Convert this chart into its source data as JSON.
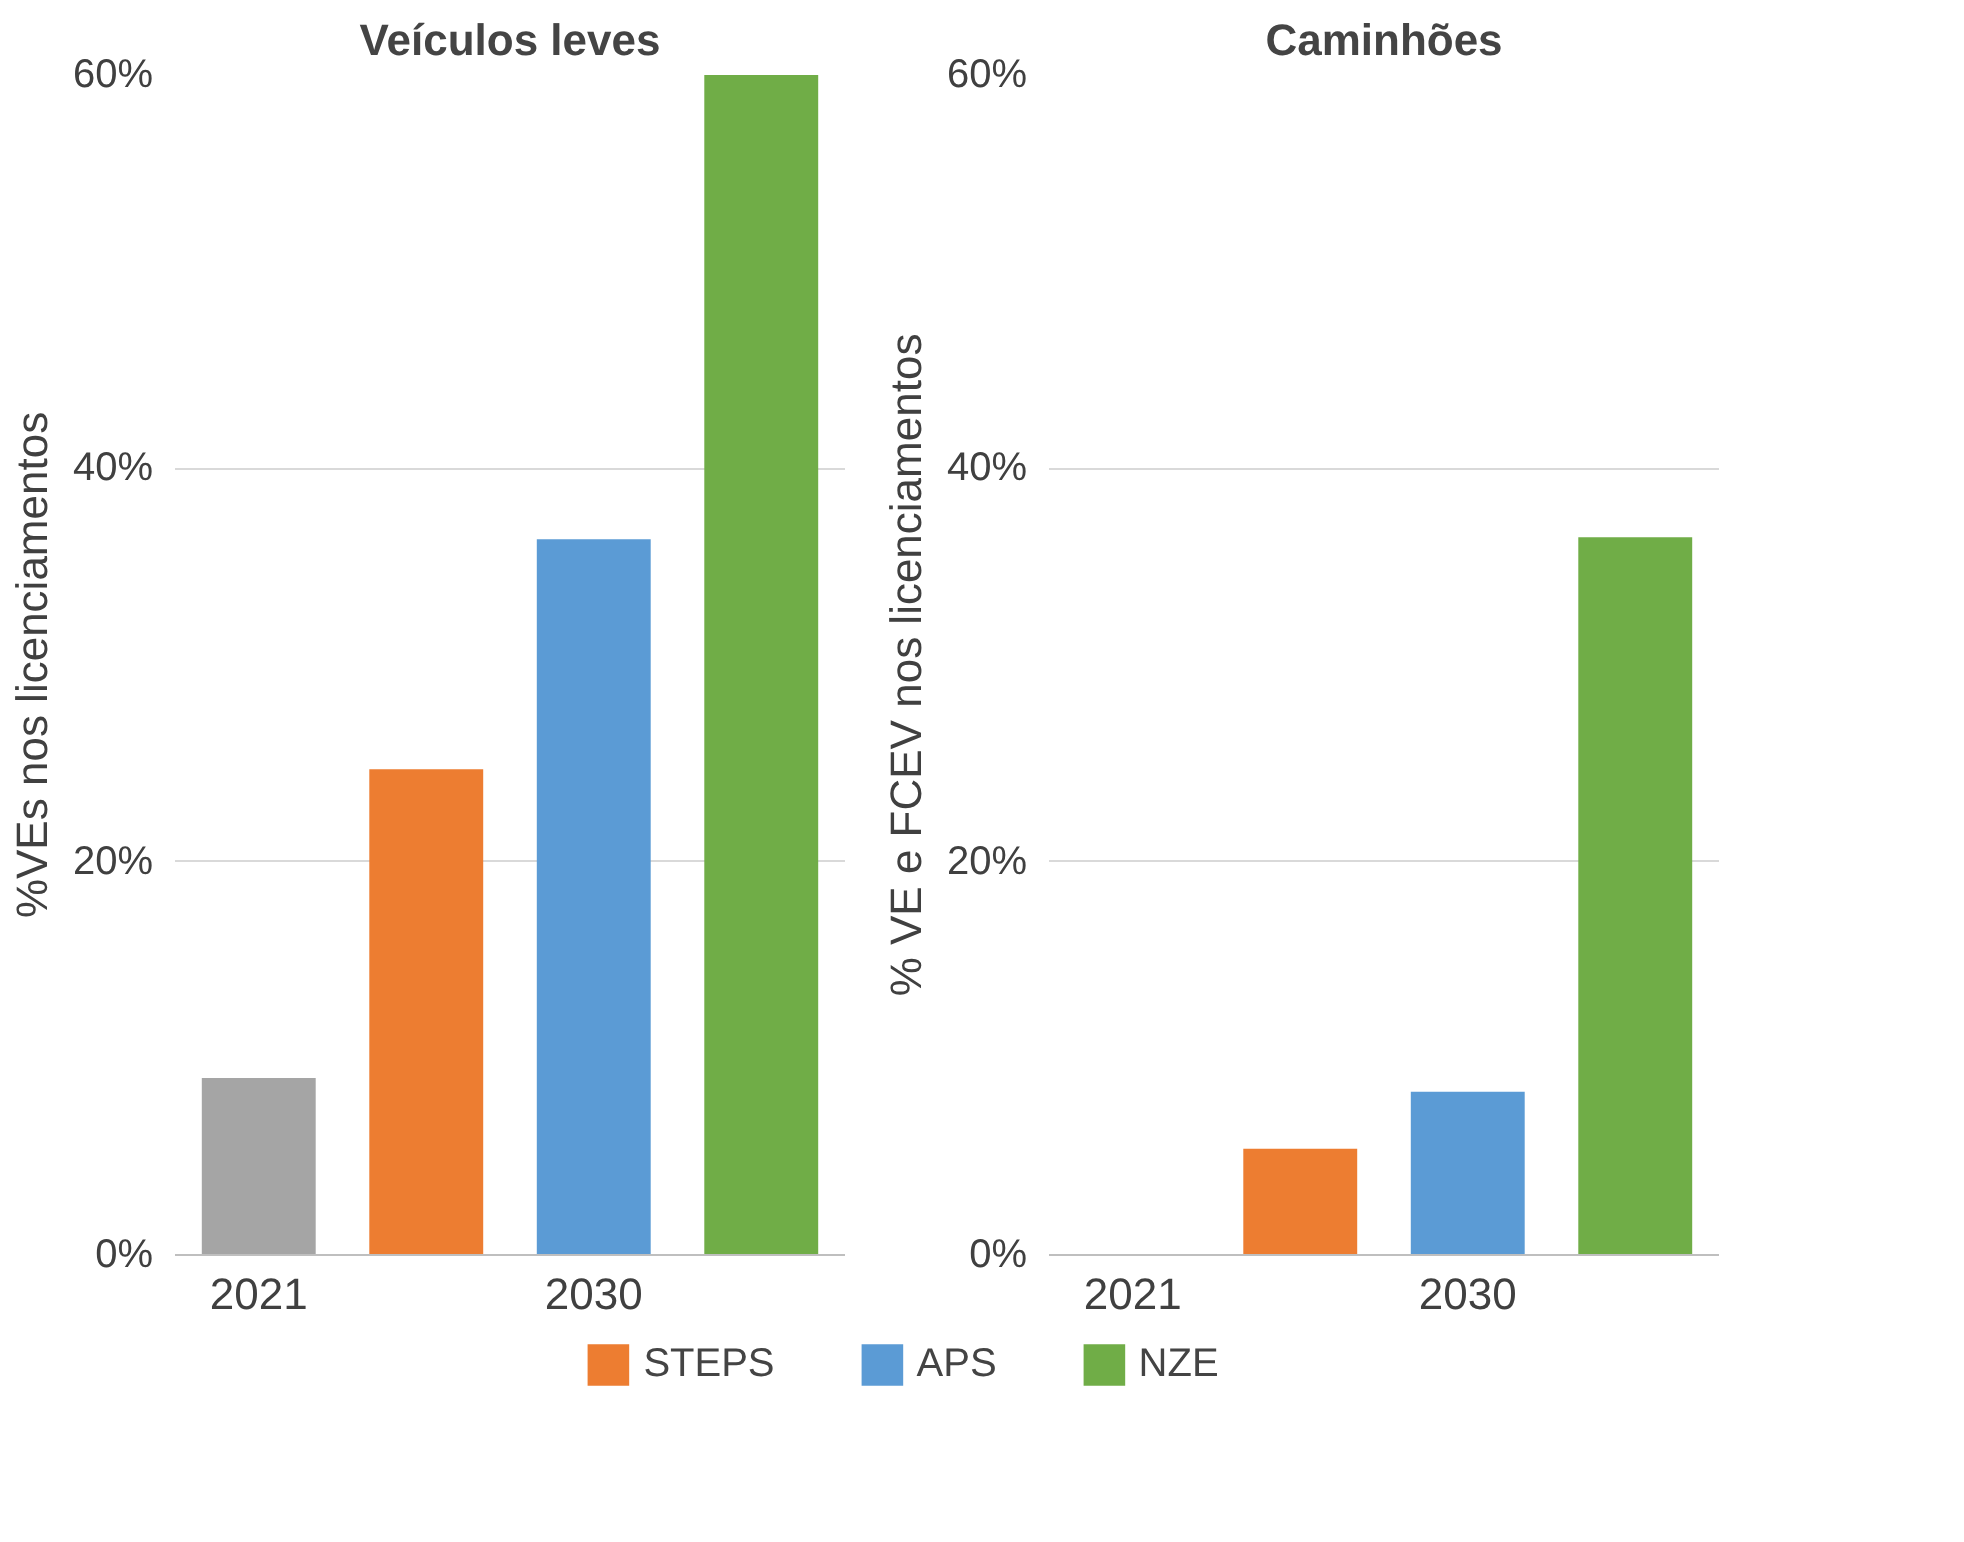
{
  "chart_data": [
    {
      "type": "bar",
      "title": "Veículos leves",
      "ylabel": "%VEs nos licenciamentos",
      "categories": [
        "2021",
        null,
        "2030",
        null
      ],
      "series": [
        {
          "color": "#a5a5a5",
          "values": [
            9.0,
            null,
            null,
            null
          ]
        },
        {
          "name": "STEPS",
          "color": "#ed7d31",
          "values": [
            null,
            24.7,
            null,
            null
          ]
        },
        {
          "name": "APS",
          "color": "#5b9bd5",
          "values": [
            null,
            null,
            36.4,
            null
          ]
        },
        {
          "name": "NZE",
          "color": "#70ad47",
          "values": [
            null,
            null,
            null,
            60
          ]
        }
      ],
      "ylim": [
        0,
        60
      ],
      "yticks": [
        {
          "value": 0,
          "label": "0%"
        },
        {
          "value": 20,
          "label": "20%"
        },
        {
          "value": 40,
          "label": "40%"
        },
        {
          "value": 60,
          "label": "60%"
        }
      ],
      "grid": "y",
      "legend": "bottom"
    },
    {
      "type": "bar",
      "title": "Caminhões",
      "ylabel": "% VE e FCEV nos licenciamentos",
      "categories": [
        "2021",
        null,
        "2030",
        null
      ],
      "series": [
        {
          "color": "#a5a5a5",
          "values": [
            0,
            null,
            null,
            null
          ]
        },
        {
          "color": "#ed7d31",
          "values": [
            null,
            5.4,
            null,
            null
          ]
        },
        {
          "color": "#5b9bd5",
          "values": [
            null,
            null,
            8.3,
            null
          ]
        },
        {
          "color": "#70ad47",
          "values": [
            null,
            null,
            null,
            36.5
          ]
        }
      ],
      "ylim": [
        0,
        60
      ],
      "yticks": [
        {
          "value": 0,
          "label": "0%"
        },
        {
          "value": 20,
          "label": "20%"
        },
        {
          "value": 40,
          "label": "40%"
        },
        {
          "value": 60,
          "label": "60%"
        }
      ],
      "grid": "y"
    }
  ]
}
